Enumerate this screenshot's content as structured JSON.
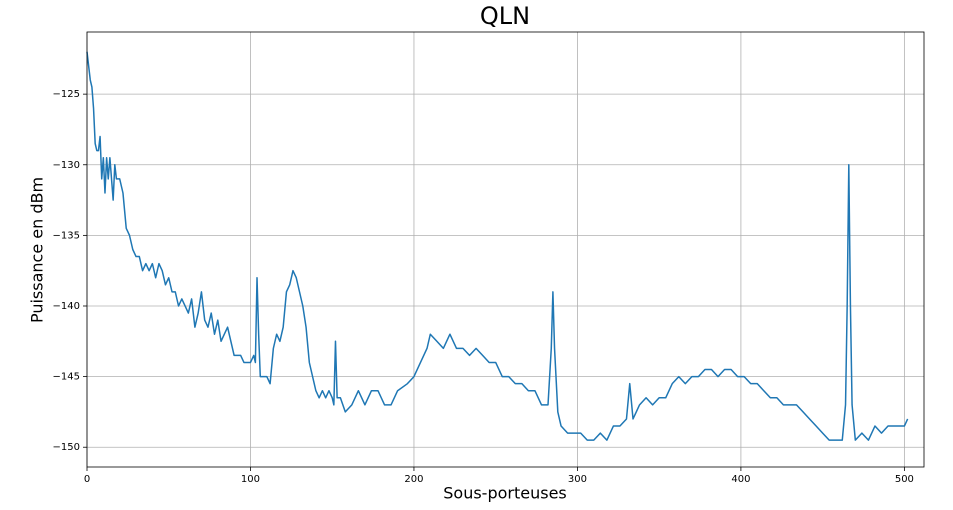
{
  "chart_data": {
    "type": "line",
    "title": "QLN",
    "x_label": "Sous-porteuses",
    "y_label": "Puissance en dBm",
    "x": [
      0,
      1,
      2,
      3,
      4,
      5,
      6,
      7,
      8,
      9,
      10,
      11,
      12,
      13,
      14,
      16,
      17,
      18,
      20,
      22,
      24,
      26,
      28,
      30,
      32,
      34,
      36,
      38,
      40,
      42,
      44,
      46,
      48,
      50,
      52,
      54,
      56,
      58,
      60,
      62,
      64,
      66,
      68,
      70,
      72,
      74,
      76,
      78,
      80,
      82,
      84,
      86,
      88,
      90,
      92,
      94,
      96,
      98,
      100,
      102,
      103,
      104,
      105,
      106,
      108,
      110,
      112,
      114,
      116,
      118,
      120,
      122,
      124,
      126,
      128,
      130,
      132,
      134,
      136,
      138,
      140,
      142,
      144,
      146,
      148,
      150,
      151,
      152,
      153,
      155,
      158,
      162,
      166,
      170,
      174,
      178,
      182,
      186,
      190,
      196,
      200,
      204,
      208,
      210,
      214,
      218,
      222,
      226,
      230,
      234,
      238,
      242,
      246,
      250,
      254,
      258,
      262,
      266,
      270,
      274,
      278,
      282,
      284,
      285,
      286,
      288,
      290,
      294,
      298,
      302,
      306,
      310,
      314,
      318,
      322,
      326,
      330,
      332,
      334,
      338,
      342,
      346,
      350,
      354,
      358,
      362,
      366,
      370,
      374,
      378,
      382,
      386,
      390,
      394,
      398,
      402,
      406,
      410,
      414,
      418,
      422,
      426,
      430,
      434,
      438,
      442,
      446,
      450,
      454,
      458,
      462,
      464,
      465,
      466,
      467,
      468,
      470,
      474,
      478,
      482,
      486,
      490,
      494,
      498,
      500,
      502
    ],
    "series": [
      {
        "color": "#1f77b4",
        "values": [
          -122,
          -123,
          -124,
          -124.5,
          -126,
          -128.5,
          -129,
          -129,
          -128,
          -131,
          -129.5,
          -132,
          -129.5,
          -131,
          -129.5,
          -132.5,
          -130,
          -131,
          -131,
          -132,
          -134.5,
          -135,
          -136,
          -136.5,
          -136.5,
          -137.5,
          -137,
          -137.5,
          -137,
          -138,
          -137,
          -137.5,
          -138.5,
          -138,
          -139,
          -139,
          -140,
          -139.5,
          -140,
          -140.5,
          -139.5,
          -141.5,
          -140.5,
          -139,
          -141,
          -141.5,
          -140.5,
          -142,
          -141,
          -142.5,
          -142,
          -141.5,
          -142.5,
          -143.5,
          -143.5,
          -143.5,
          -144,
          -144,
          -144,
          -143.5,
          -144,
          -138,
          -142,
          -145,
          -145,
          -145,
          -145.5,
          -143,
          -142,
          -142.5,
          -141.5,
          -139,
          -138.5,
          -137.5,
          -138,
          -139,
          -140,
          -141.5,
          -144,
          -145,
          -146,
          -146.5,
          -146,
          -146.5,
          -146,
          -146.5,
          -147,
          -142.5,
          -146.5,
          -146.5,
          -147.5,
          -147,
          -146,
          -147,
          -146,
          -146,
          -147,
          -147,
          -146,
          -145.5,
          -145,
          -144,
          -143,
          -142,
          -142.5,
          -143,
          -142,
          -143,
          -143,
          -143.5,
          -143,
          -143.5,
          -144,
          -144,
          -145,
          -145,
          -145.5,
          -145.5,
          -146,
          -146,
          -147,
          -147,
          -143,
          -139,
          -143,
          -147.5,
          -148.5,
          -149,
          -149,
          -149,
          -149.5,
          -149.5,
          -149,
          -149.5,
          -148.5,
          -148.5,
          -148,
          -145.5,
          -148,
          -147,
          -146.5,
          -147,
          -146.5,
          -146.5,
          -145.5,
          -145,
          -145.5,
          -145,
          -145,
          -144.5,
          -144.5,
          -145,
          -144.5,
          -144.5,
          -145,
          -145,
          -145.5,
          -145.5,
          -146,
          -146.5,
          -146.5,
          -147,
          -147,
          -147,
          -147.5,
          -148,
          -148.5,
          -149,
          -149.5,
          -149.5,
          -149.5,
          -147,
          -140,
          -130,
          -140,
          -147,
          -149.5,
          -149,
          -149.5,
          -148.5,
          -149,
          -148.5,
          -148.5,
          -148.5,
          -148.5,
          -148
        ]
      }
    ],
    "xlim": [
      0,
      512
    ],
    "ylim": [
      -151.4,
      -120.6
    ],
    "xticks": [
      0,
      100,
      200,
      300,
      400,
      500
    ],
    "yticks": [
      {
        "value": -150,
        "label": "−150"
      },
      {
        "value": -145,
        "label": "−145"
      },
      {
        "value": -140,
        "label": "−140"
      },
      {
        "value": -135,
        "label": "−135"
      },
      {
        "value": -130,
        "label": "−130"
      },
      {
        "value": -125,
        "label": "−125"
      }
    ],
    "grid": true
  }
}
